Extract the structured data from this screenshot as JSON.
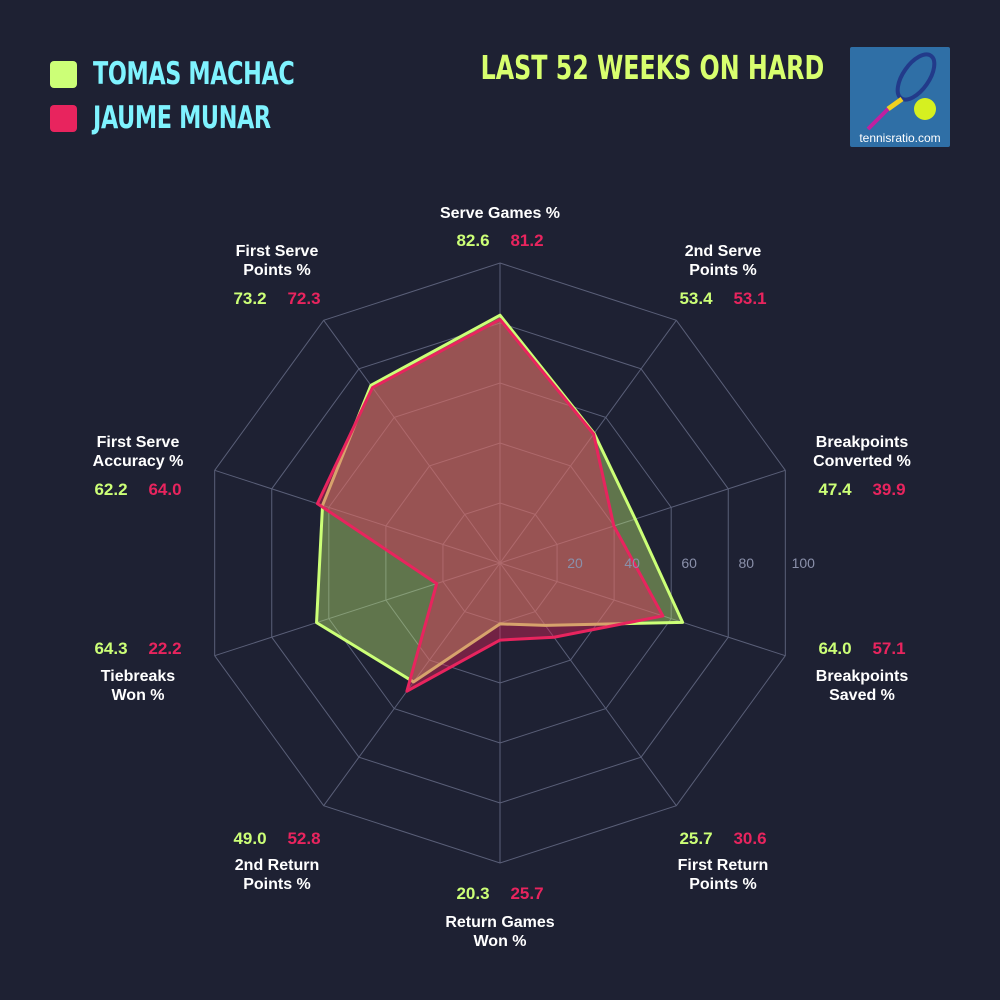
{
  "title": "LAST 52 WEEKS ON HARD",
  "logo_text": "tennisratio.com",
  "colors": {
    "background": "#1e2133",
    "player1": "#ccff77",
    "player2": "#e8245e",
    "legend_text": "#7ff3ff",
    "title": "#d8ff6e"
  },
  "chart_data": {
    "type": "radar",
    "range": [
      0,
      100
    ],
    "ticks": [
      "20",
      "40",
      "60",
      "80",
      "100"
    ],
    "axes": [
      [
        "Serve Games %"
      ],
      [
        "2nd Serve",
        "Points %"
      ],
      [
        "Breakpoints",
        "Converted %"
      ],
      [
        "Breakpoints",
        "Saved %"
      ],
      [
        "First Return",
        "Points %"
      ],
      [
        "Return Games",
        "Won %"
      ],
      [
        "2nd Return",
        "Points %"
      ],
      [
        "Tiebreaks",
        "Won %"
      ],
      [
        "First Serve",
        "Accuracy %"
      ],
      [
        "First Serve",
        "Points %"
      ]
    ],
    "series": [
      {
        "name": "TOMAS MACHAC",
        "color": "#ccff77",
        "values": [
          82.6,
          53.4,
          47.4,
          64.0,
          25.7,
          20.3,
          49.0,
          64.3,
          62.2,
          73.2
        ]
      },
      {
        "name": "JAUME MUNAR",
        "color": "#e8245e",
        "values": [
          81.2,
          53.1,
          39.9,
          57.1,
          30.6,
          25.7,
          52.8,
          22.2,
          64.0,
          72.3
        ]
      }
    ],
    "legend": "top-left"
  }
}
